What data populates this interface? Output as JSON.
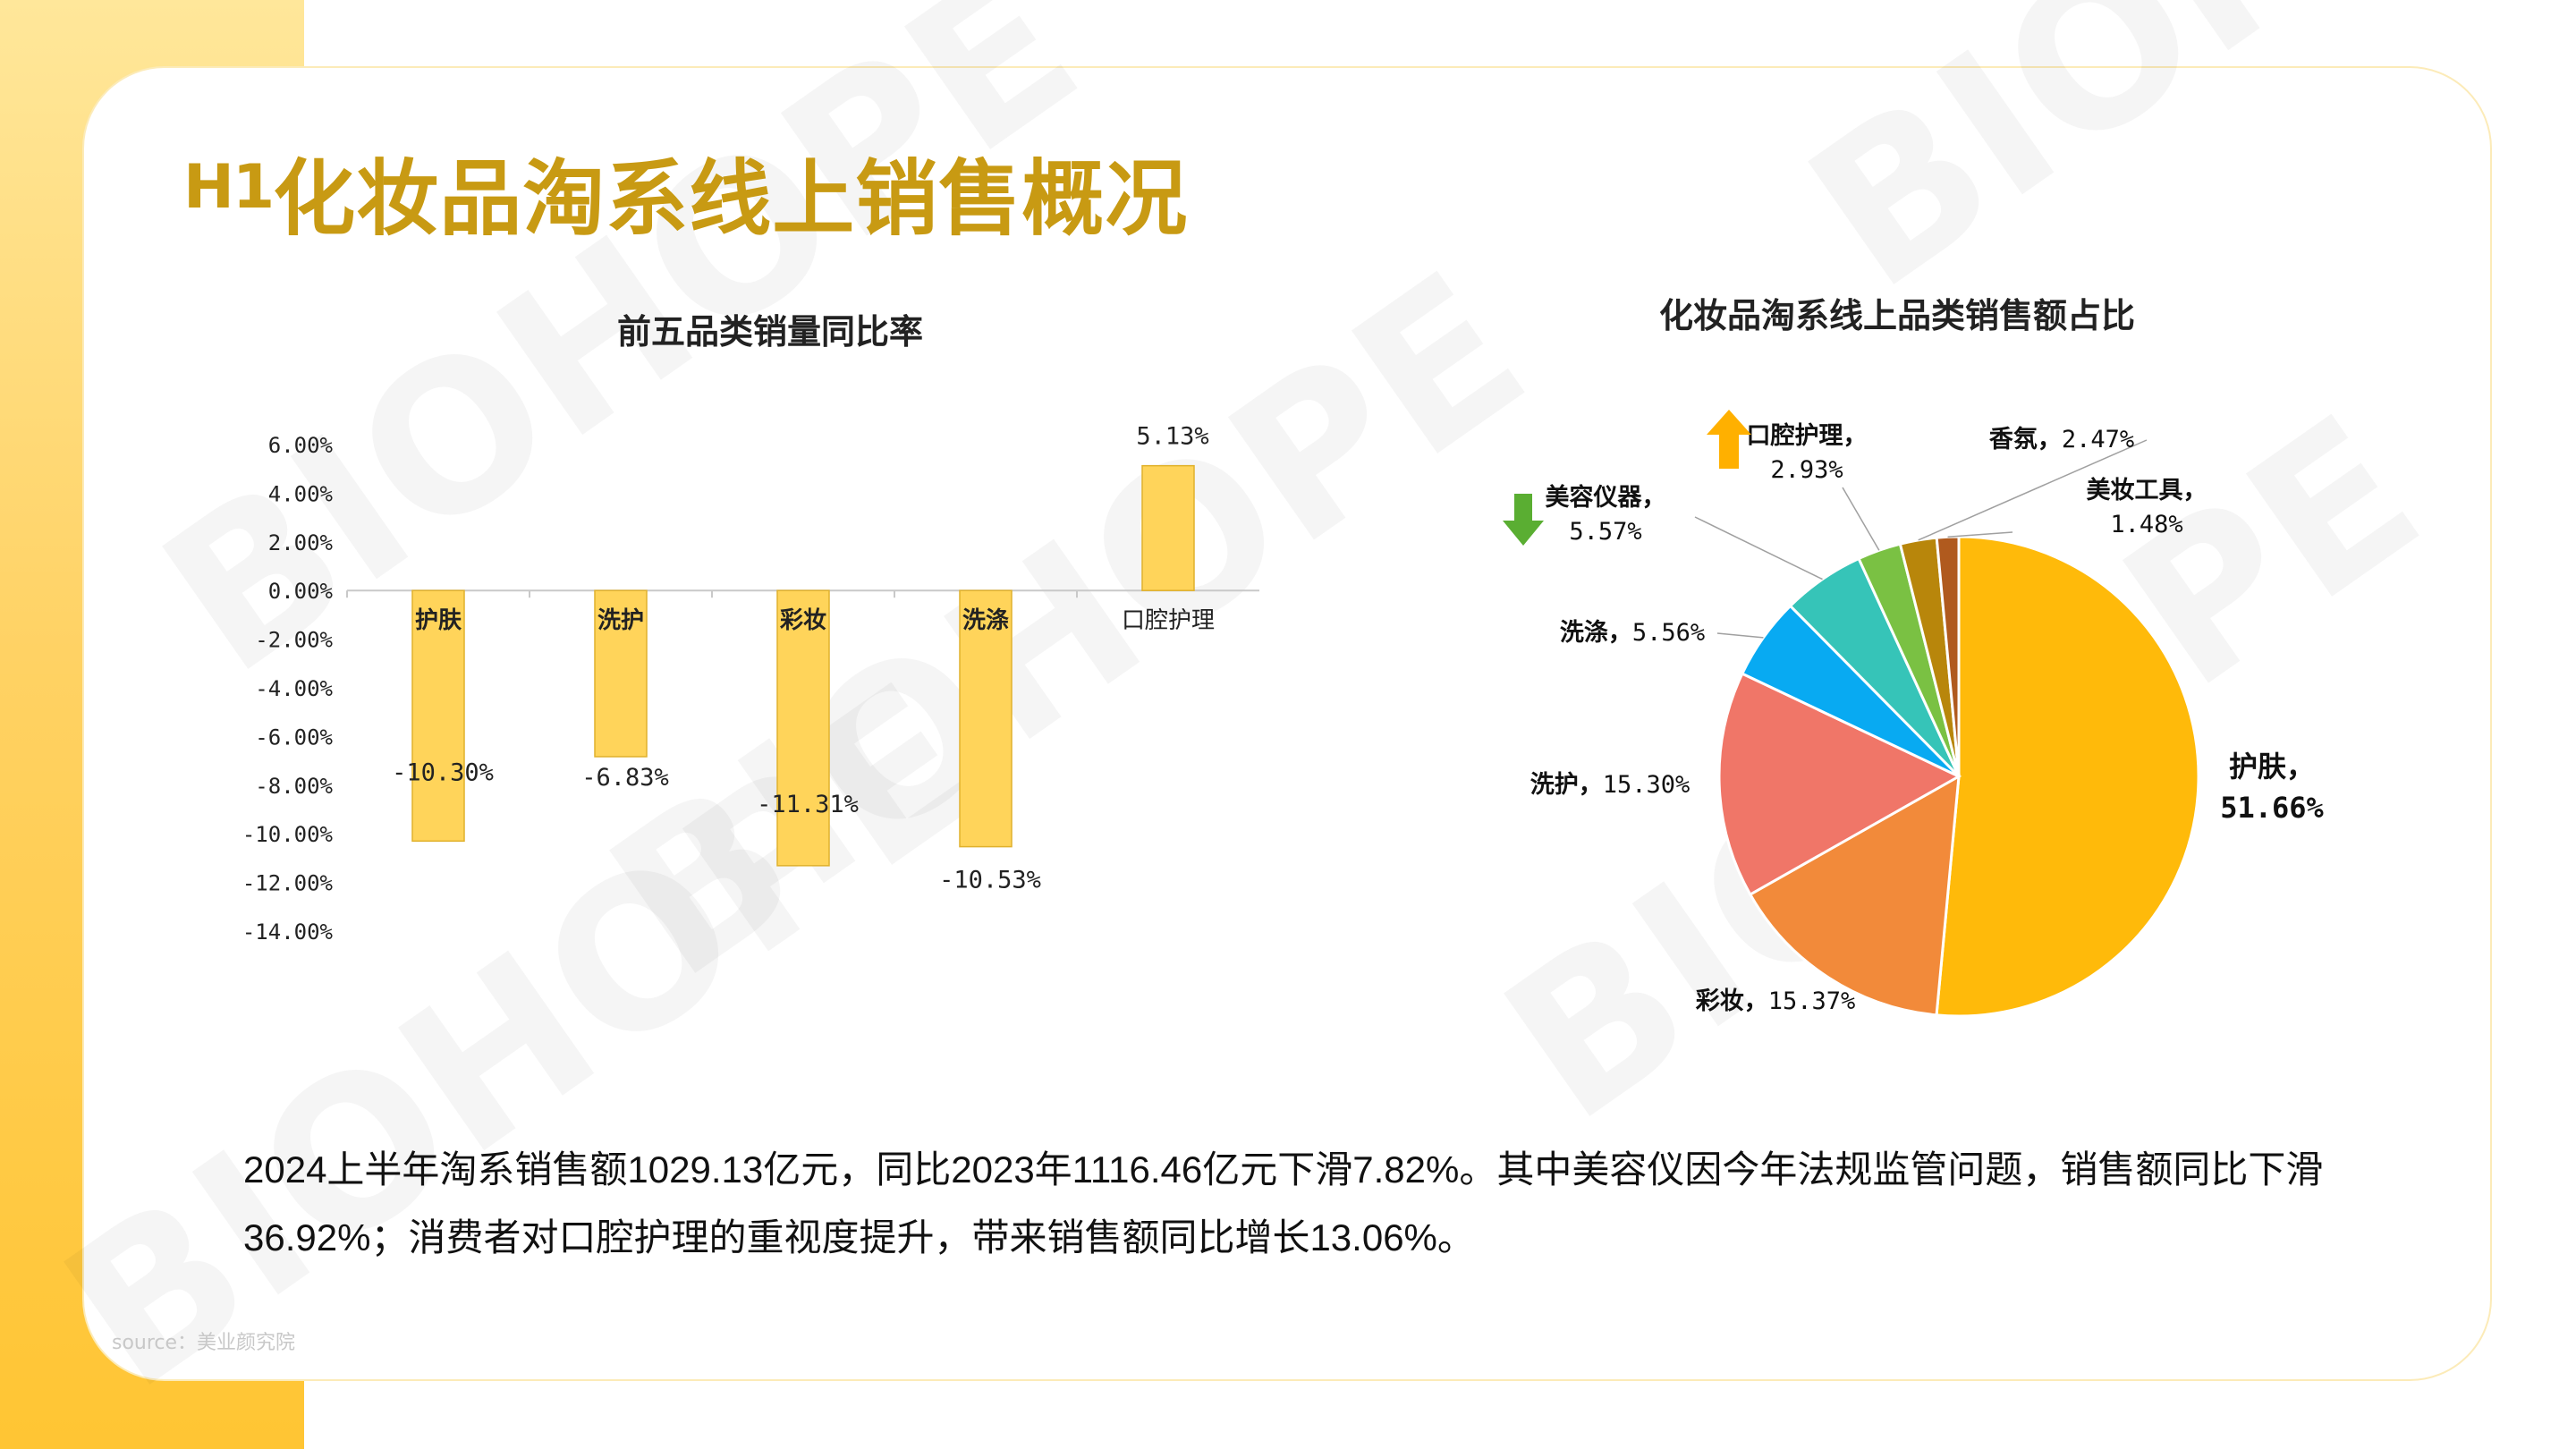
{
  "slide": {
    "title_prefix": "H1",
    "title_main": "化妆品淘系线上销售概况",
    "watermark_text": "BIOHOPE",
    "body_line1": "2024上半年淘系销售额1029.13亿元，同比2023年1116.46亿元下滑7.82%。其中美容仪因今年法规监管问题，销售额同比下滑",
    "body_line2": "36.92%；消费者对口腔护理的重视度提升，带来销售额同比增长13.06%。",
    "source": "source：美业颜究院"
  },
  "chart_data": [
    {
      "type": "bar",
      "title": "前五品类销量同比率",
      "categories": [
        "护肤",
        "洗护",
        "彩妆",
        "洗涤",
        "口腔护理"
      ],
      "values": [
        -10.3,
        -6.83,
        -11.31,
        -10.53,
        5.13
      ],
      "value_labels": [
        "-10.30%",
        "-6.83%",
        "-11.31%",
        "-10.53%",
        "5.13%"
      ],
      "yticks": [
        "6.00%",
        "4.00%",
        "2.00%",
        "0.00%",
        "-2.00%",
        "-4.00%",
        "-6.00%",
        "-8.00%",
        "-10.00%",
        "-12.00%",
        "-14.00%"
      ],
      "ylim": [
        -14,
        6
      ],
      "color": "#ffd45a"
    },
    {
      "type": "pie",
      "title": "化妆品淘系线上品类销售额占比",
      "slices": [
        {
          "label": "护肤",
          "value": 51.66,
          "text": "51.66%",
          "color": "#ffba0a"
        },
        {
          "label": "彩妆",
          "value": 15.37,
          "text": "15.37%",
          "color": "#f28a3a"
        },
        {
          "label": "洗护",
          "value": 15.3,
          "text": "15.30%",
          "color": "#f07668"
        },
        {
          "label": "洗涤",
          "value": 5.56,
          "text": "5.56%",
          "color": "#08aaf2"
        },
        {
          "label": "美容仪器",
          "value": 5.57,
          "text": "5.57%",
          "color": "#36c4b8"
        },
        {
          "label": "口腔护理",
          "value": 2.93,
          "text": "2.93%",
          "color": "#7ac143"
        },
        {
          "label": "香氛",
          "value": 2.47,
          "text": "2.47%",
          "color": "#b8860b"
        },
        {
          "label": "美妆工具",
          "value": 1.48,
          "text": "1.48%",
          "color": "#b05a1e"
        }
      ],
      "indicators": {
        "美容仪器": "down",
        "口腔护理": "up"
      },
      "indicator_colors": {
        "up": "#ffb000",
        "down": "#5aae32"
      }
    }
  ]
}
